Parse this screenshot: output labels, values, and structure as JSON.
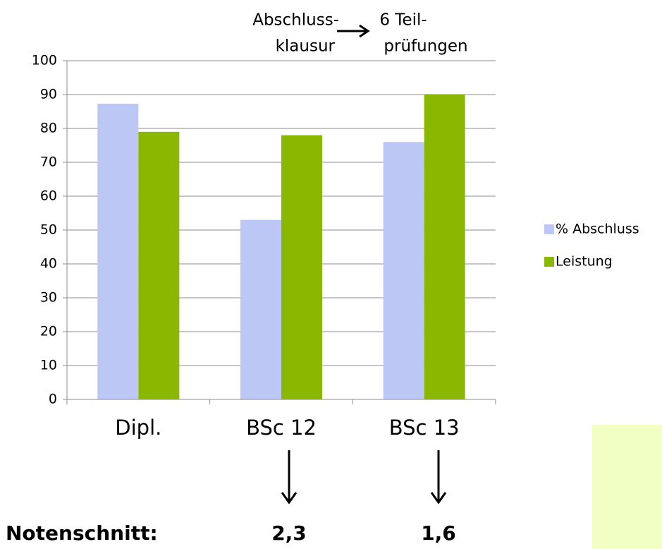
{
  "chart_data": {
    "type": "bar",
    "categories": [
      "Dipl.",
      "BSc 12",
      "BSc 13"
    ],
    "series": [
      {
        "name": "% Abschluss",
        "color": "#bdc7f5",
        "values": [
          87.3,
          53,
          76
        ]
      },
      {
        "name": "Leistung",
        "color": "#8ab800",
        "values": [
          79,
          78,
          90
        ]
      }
    ],
    "ylim": [
      0,
      100
    ],
    "yticks": [
      0,
      10,
      20,
      30,
      40,
      50,
      60,
      70,
      80,
      90,
      100
    ],
    "grid": true,
    "legend": "right",
    "annotations": {
      "before": [
        "Abschluss-",
        "klausur"
      ],
      "after": [
        "6 Teil-",
        "prüfungen"
      ]
    },
    "footer": {
      "label": "Notenschnitt:",
      "values": [
        "2,3",
        "1,6"
      ]
    }
  }
}
